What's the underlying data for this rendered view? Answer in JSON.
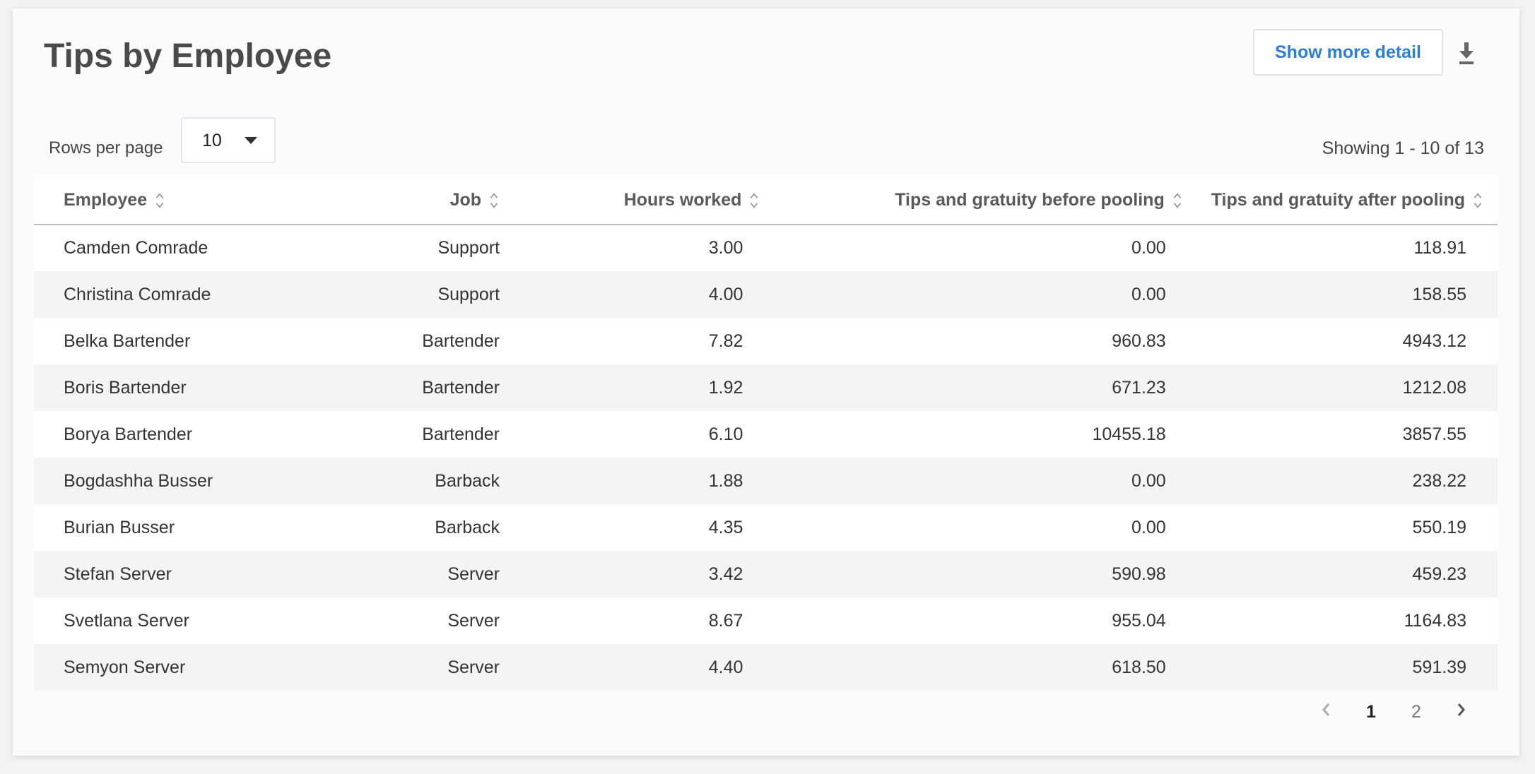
{
  "header": {
    "title": "Tips by Employee",
    "show_more_detail": "Show more detail",
    "download_icon": "download-icon"
  },
  "controls": {
    "rows_per_page_label": "Rows per page",
    "rows_per_page_value": "10",
    "showing": "Showing 1 - 10 of 13"
  },
  "table": {
    "columns": [
      "Employee",
      "Job",
      "Hours worked",
      "Tips and gratuity before pooling",
      "Tips and gratuity after pooling"
    ],
    "rows": [
      [
        "Camden Comrade",
        "Support",
        "3.00",
        "0.00",
        "118.91"
      ],
      [
        "Christina Comrade",
        "Support",
        "4.00",
        "0.00",
        "158.55"
      ],
      [
        "Belka Bartender",
        "Bartender",
        "7.82",
        "960.83",
        "4943.12"
      ],
      [
        "Boris Bartender",
        "Bartender",
        "1.92",
        "671.23",
        "1212.08"
      ],
      [
        "Borya Bartender",
        "Bartender",
        "6.10",
        "10455.18",
        "3857.55"
      ],
      [
        "Bogdashha Busser",
        "Barback",
        "1.88",
        "0.00",
        "238.22"
      ],
      [
        "Burian Busser",
        "Barback",
        "4.35",
        "0.00",
        "550.19"
      ],
      [
        "Stefan Server",
        "Server",
        "3.42",
        "590.98",
        "459.23"
      ],
      [
        "Svetlana Server",
        "Server",
        "8.67",
        "955.04",
        "1164.83"
      ],
      [
        "Semyon Server",
        "Server",
        "4.40",
        "618.50",
        "591.39"
      ]
    ]
  },
  "pagination": {
    "pages": [
      "1",
      "2"
    ],
    "current": "1"
  },
  "colors": {
    "accent": "#2d7ed8",
    "row_alt": "#f4f4f4"
  }
}
